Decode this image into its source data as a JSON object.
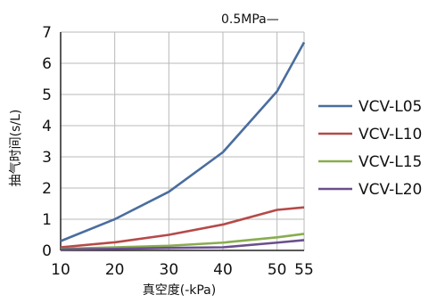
{
  "chart_data": {
    "type": "line",
    "x": [
      10,
      20,
      30,
      40,
      50,
      55
    ],
    "series": [
      {
        "name": "VCV-L05",
        "values": [
          0.3,
          1.0,
          1.88,
          3.15,
          5.1,
          6.67
        ],
        "color": "#4a6d9e"
      },
      {
        "name": "VCV-L10",
        "values": [
          0.1,
          0.26,
          0.5,
          0.83,
          1.3,
          1.38
        ],
        "color": "#b54a49"
      },
      {
        "name": "VCV-L15",
        "values": [
          0.05,
          0.1,
          0.15,
          0.25,
          0.42,
          0.53
        ],
        "color": "#88ad4e"
      },
      {
        "name": "VCV-L20",
        "values": [
          0.03,
          0.05,
          0.08,
          0.1,
          0.25,
          0.33
        ],
        "color": "#6a4f8c"
      }
    ],
    "title": "0.5MPa—",
    "xlabel": "真空度(-kPa)",
    "ylabel": "抽气时间(s/L)",
    "ylim": [
      0,
      7
    ],
    "yticks": [
      0,
      1,
      2,
      3,
      4,
      5,
      6,
      7
    ],
    "xticks": [
      10,
      20,
      30,
      40,
      50,
      55
    ],
    "grid": true,
    "legend_position": "right"
  }
}
